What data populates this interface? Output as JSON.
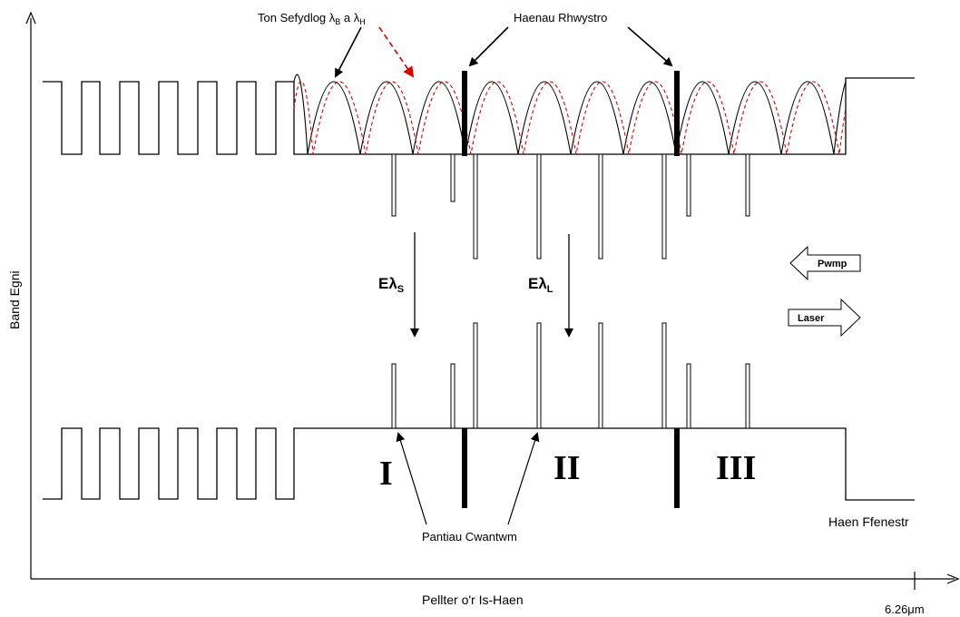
{
  "labels": {
    "standing_wave_prefix": "Ton Sefydlog ",
    "lambda_b": "λ",
    "lambda_b_sub": "B",
    "conj": " a ",
    "lambda_h": "λ",
    "lambda_h_sub": "H",
    "barrier_layers": "Haenau Rhwystro",
    "pump": "Pwmp",
    "laser": "Laser",
    "e_symbol_s": "Eλ",
    "e_sub_s": "S",
    "e_symbol_l": "Eλ",
    "e_sub_l": "L",
    "region_1": "I",
    "region_2": "II",
    "region_3": "III",
    "quantum_wells": "Pantiau Cwantwm",
    "window_layer": "Haen Ffenestr",
    "x_axis": "Pellter o'r Is-Haen",
    "y_axis": "Band Egni",
    "scale_end": "6.26μm"
  },
  "colors": {
    "line": "#000000",
    "wave_secondary": "#e00000",
    "background": "#ffffff"
  },
  "icons": {
    "pump_arrow": "left-arrow-icon",
    "laser_arrow": "right-arrow-icon"
  }
}
